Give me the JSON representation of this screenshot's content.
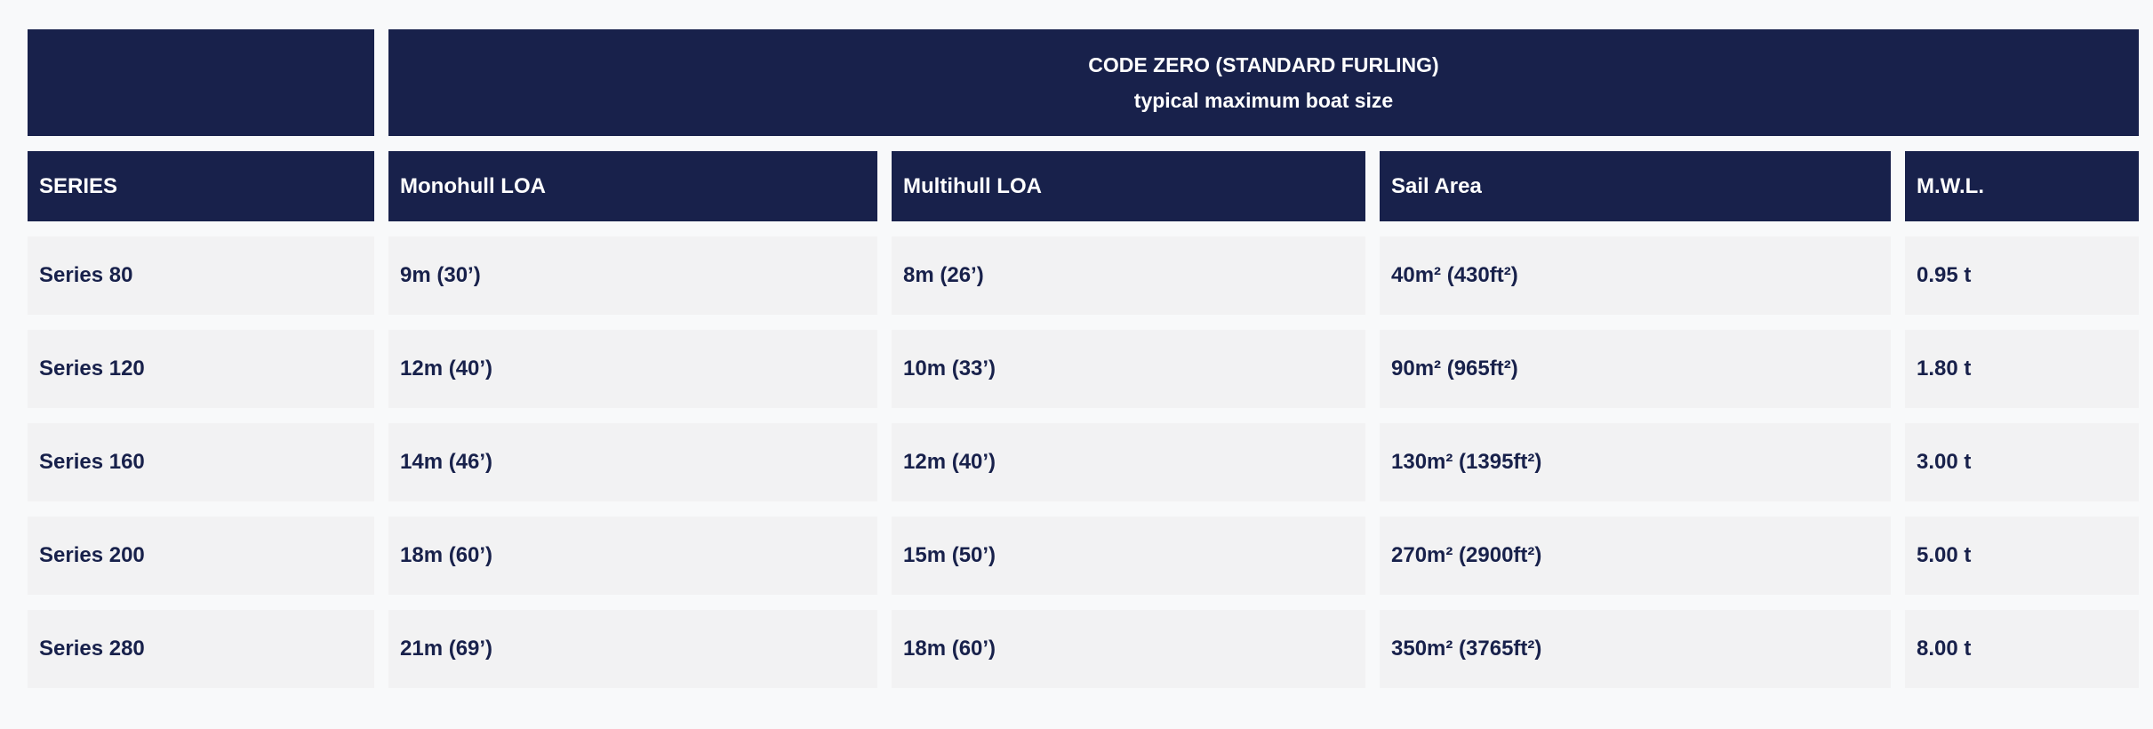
{
  "colors": {
    "navy": "#18214b",
    "cell_background": "#f2f2f3",
    "page_background": "#f8f9fa",
    "header_text": "#ffffff"
  },
  "table": {
    "group_header": {
      "line1": "CODE ZERO (STANDARD FURLING)",
      "line2": "typical maximum boat size"
    },
    "columns": [
      "SERIES",
      "Monohull LOA",
      "Multihull LOA",
      "Sail Area",
      "M.W.L."
    ],
    "rows": [
      {
        "series": "Series 80",
        "monohull_loa": "9m (30’)",
        "multihull_loa": "8m (26’)",
        "sail_area": "40m² (430ft²)",
        "mwl": "0.95 t"
      },
      {
        "series": "Series 120",
        "monohull_loa": "12m (40’)",
        "multihull_loa": "10m (33’)",
        "sail_area": "90m² (965ft²)",
        "mwl": "1.80 t"
      },
      {
        "series": "Series 160",
        "monohull_loa": "14m (46’)",
        "multihull_loa": "12m (40’)",
        "sail_area": "130m² (1395ft²)",
        "mwl": "3.00 t"
      },
      {
        "series": "Series 200",
        "monohull_loa": "18m (60’)",
        "multihull_loa": "15m (50’)",
        "sail_area": "270m² (2900ft²)",
        "mwl": "5.00 t"
      },
      {
        "series": "Series 280",
        "monohull_loa": "21m (69’)",
        "multihull_loa": "18m (60’)",
        "sail_area": "350m² (3765ft²)",
        "mwl": "8.00 t"
      }
    ]
  }
}
